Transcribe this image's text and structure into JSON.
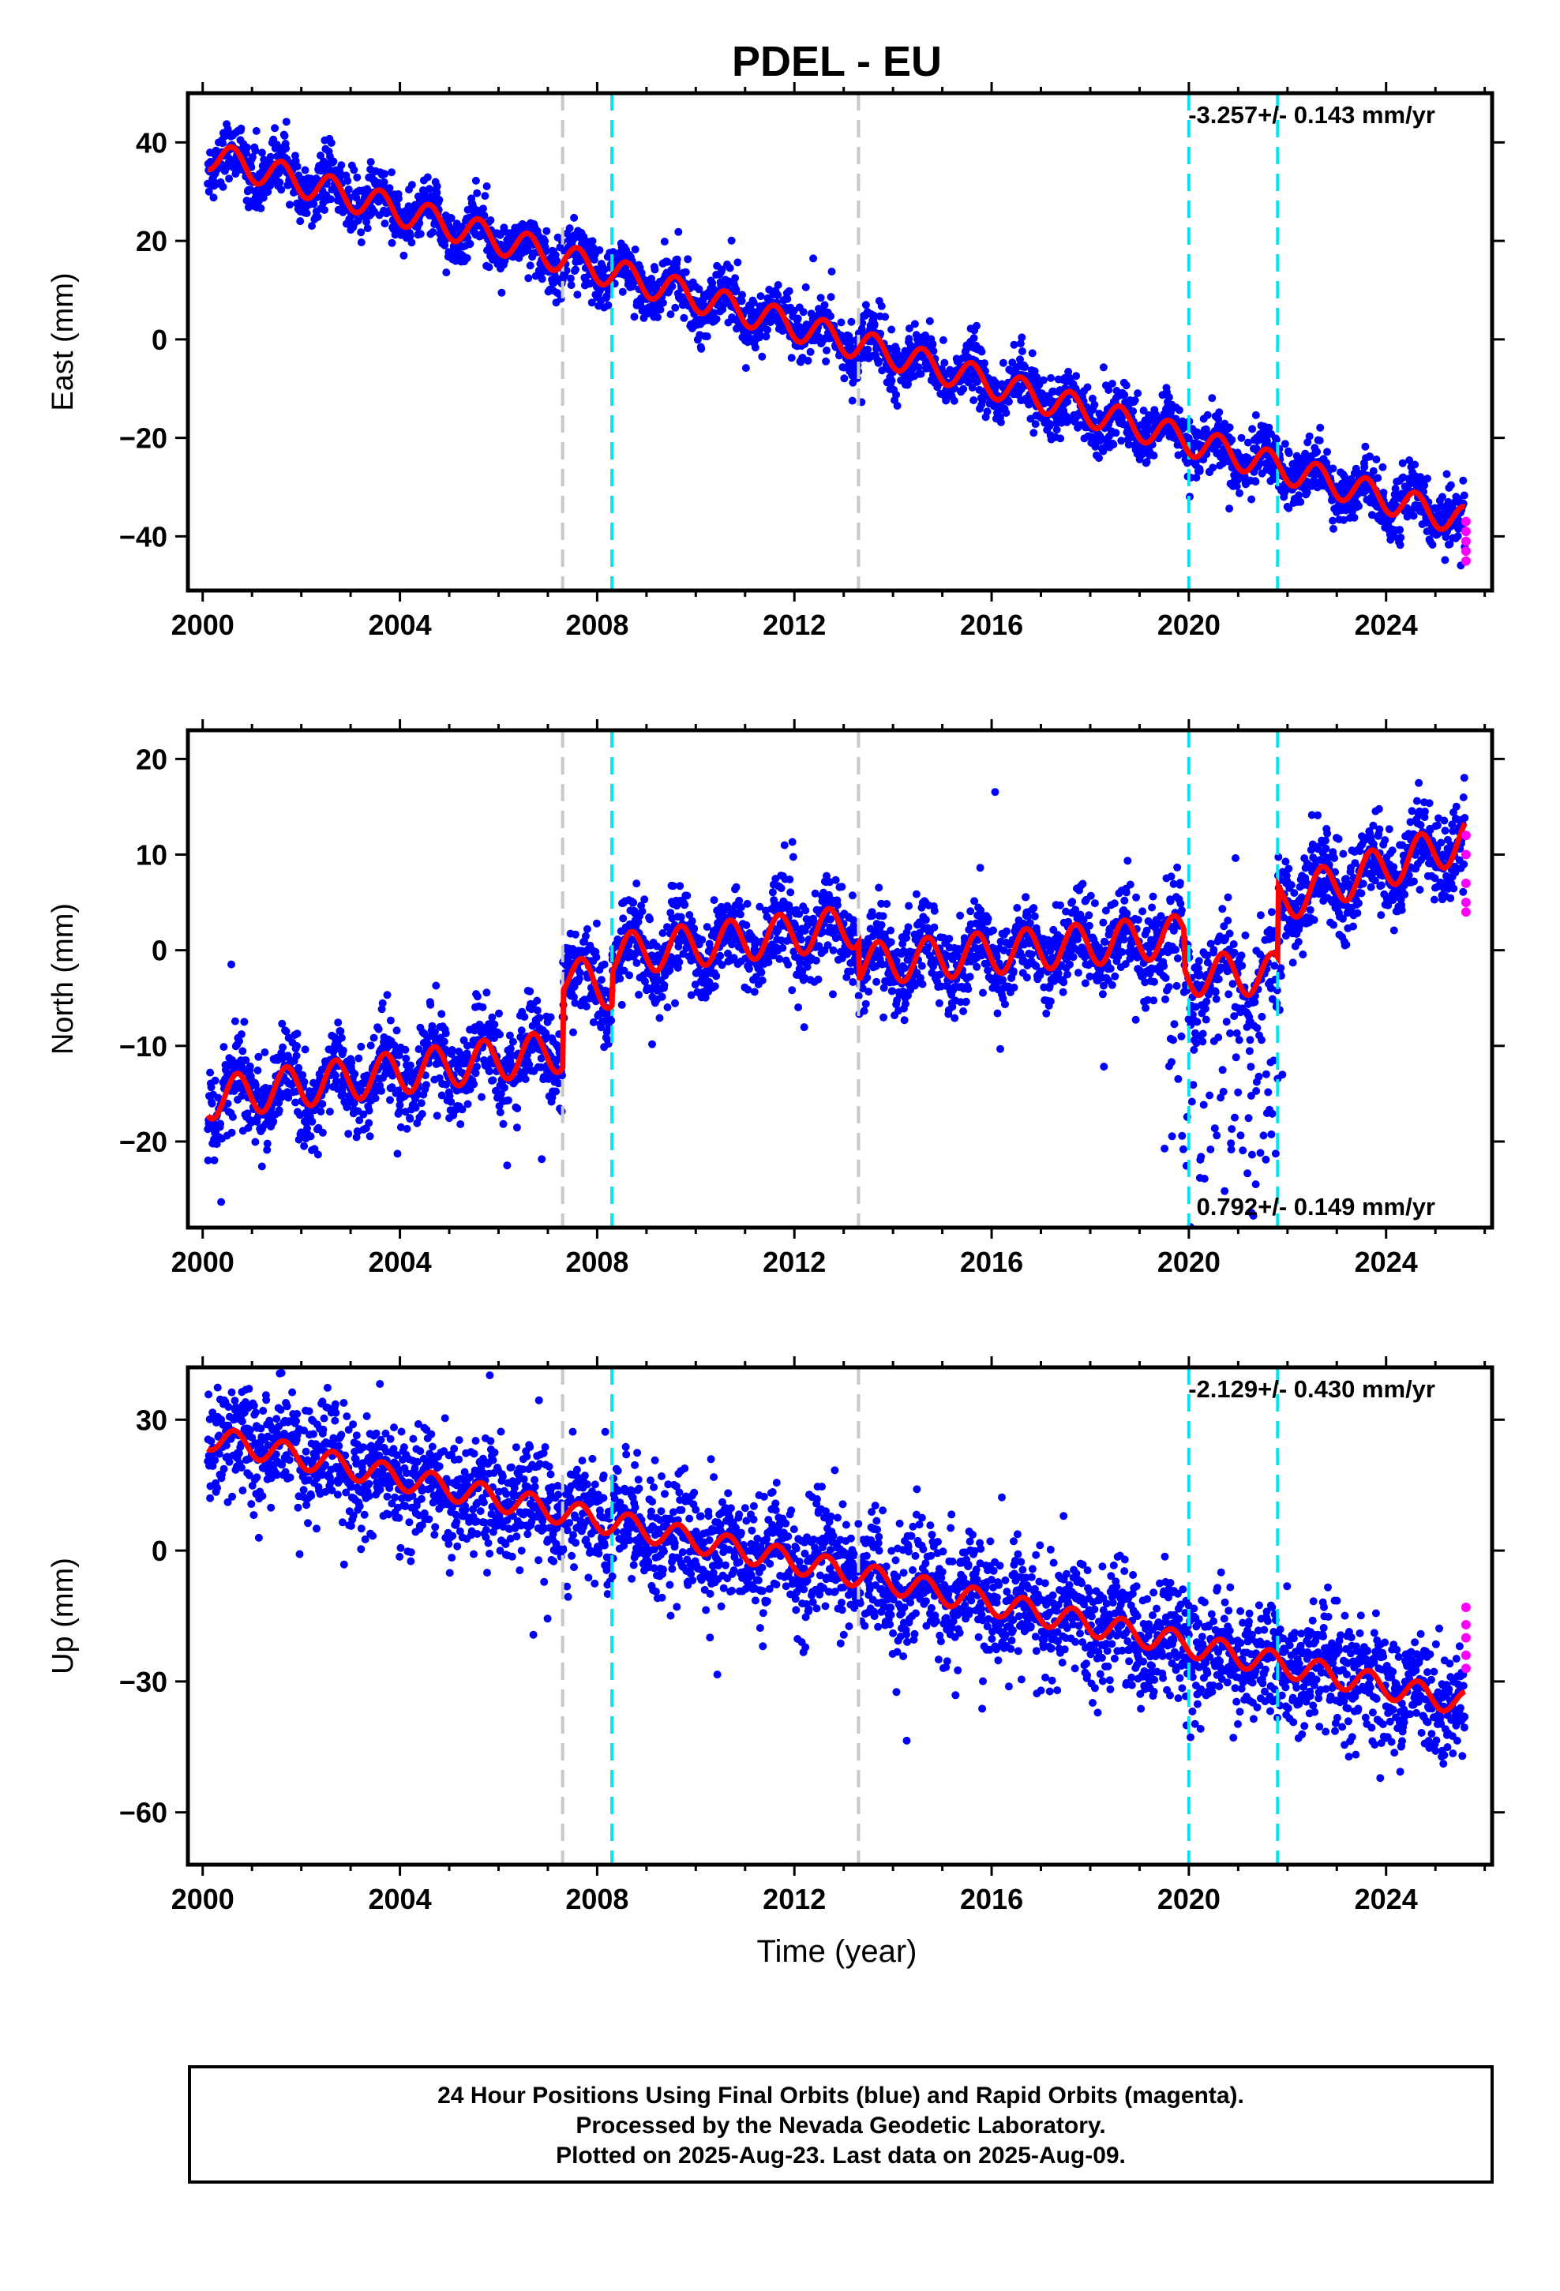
{
  "title": "PDEL - EU",
  "xlabel": "Time (year)",
  "colors": {
    "final_orbits": "#0000ff",
    "rapid_orbits": "#ff00ff",
    "model_fit": "#ff0000",
    "equipment_change": "#c8c8c8",
    "earthquake": "#00e5ee"
  },
  "footer": {
    "line1": "24 Hour Positions Using Final Orbits (blue) and Rapid Orbits (magenta).",
    "line2": "Processed by the Nevada Geodetic Laboratory.",
    "line3": "Plotted on 2025-Aug-23. Last data on 2025-Aug-09."
  },
  "chart_data": [
    {
      "type": "scatter",
      "component": "east",
      "ylabel": "East (mm)",
      "rate_label": "-3.257+/- 0.143 mm/yr",
      "rate_position": "top-right",
      "xlim": [
        1999.7,
        2026.15
      ],
      "ylim": [
        -51,
        50
      ],
      "xticks": [
        2000,
        2004,
        2008,
        2012,
        2016,
        2020,
        2024
      ],
      "yticks": [
        -40,
        -20,
        0,
        20,
        40
      ],
      "grid": false,
      "series_fit": {
        "start_year": 2000.1,
        "end_year": 2025.6,
        "start_value": 37.5,
        "end_value": -37.0,
        "annual_amplitude": 3.0,
        "phase_year": 0.35,
        "scatter_sd": 2.8,
        "offsets": [
          {
            "year": 2012.6,
            "value": -5.0
          },
          {
            "year": 2013.3,
            "value": 3.0
          },
          {
            "year": 2019.9,
            "value": -2.0
          },
          {
            "year": 2021.8,
            "value": 1.5
          }
        ]
      },
      "gray_lines": [
        2007.3,
        2013.3
      ],
      "cyan_lines": [
        2008.3,
        2020.0,
        2021.8
      ],
      "rapid_points": [
        [
          2025.62,
          -37
        ],
        [
          2025.62,
          -39
        ],
        [
          2025.62,
          -41
        ],
        [
          2025.62,
          -43
        ],
        [
          2025.62,
          -45
        ]
      ]
    },
    {
      "type": "scatter",
      "component": "north",
      "ylabel": "North (mm)",
      "rate_label": "0.792+/- 0.149 mm/yr",
      "rate_position": "bottom-right",
      "xlim": [
        1999.7,
        2026.15
      ],
      "ylim": [
        -29,
        23
      ],
      "xticks": [
        2000,
        2004,
        2008,
        2012,
        2016,
        2020,
        2024
      ],
      "yticks": [
        -20,
        -10,
        0,
        10,
        20
      ],
      "grid": false,
      "series_fit": {
        "start_year": 2000.1,
        "end_year": 2025.6,
        "start_value": -15.5,
        "end_value": 11.5,
        "annual_amplitude": 2.2,
        "phase_year": 0.45,
        "scatter_sd": 2.2,
        "segments": [
          {
            "from": 2000.1,
            "to": 2007.3,
            "start": -15.5,
            "end": -10.5
          },
          {
            "from": 2007.3,
            "to": 2008.3,
            "start": -2.5,
            "end": -4.0
          },
          {
            "from": 2008.3,
            "to": 2013.3,
            "start": -0.5,
            "end": 2.5
          },
          {
            "from": 2013.3,
            "to": 2019.9,
            "start": -1.5,
            "end": 1.5
          },
          {
            "from": 2019.9,
            "to": 2021.8,
            "start": -2.5,
            "end": -2.5
          },
          {
            "from": 2021.8,
            "to": 2025.6,
            "start": 5.0,
            "end": 11.5
          }
        ]
      },
      "gray_lines": [
        2007.3,
        2013.3
      ],
      "cyan_lines": [
        2008.3,
        2020.0,
        2021.8
      ],
      "rapid_points": [
        [
          2025.62,
          12
        ],
        [
          2025.62,
          10
        ],
        [
          2025.62,
          7
        ],
        [
          2025.62,
          5
        ],
        [
          2025.62,
          4
        ]
      ]
    },
    {
      "type": "scatter",
      "component": "up",
      "ylabel": "Up (mm)",
      "rate_label": "-2.129+/- 0.430 mm/yr",
      "rate_position": "top-right",
      "xlim": [
        1999.7,
        2026.15
      ],
      "ylim": [
        -72,
        42
      ],
      "xticks": [
        2000,
        2004,
        2008,
        2012,
        2016,
        2020,
        2024
      ],
      "yticks": [
        -60,
        -30,
        0,
        30
      ],
      "grid": false,
      "series_fit": {
        "start_year": 2000.1,
        "end_year": 2025.6,
        "start_value": 26.0,
        "end_value": -35.0,
        "annual_amplitude": 2.8,
        "phase_year": 0.4,
        "scatter_sd": 6.5,
        "offsets": [
          {
            "year": 2021.8,
            "value": -6.0
          }
        ]
      },
      "gray_lines": [
        2007.3,
        2013.3
      ],
      "cyan_lines": [
        2008.3,
        2020.0,
        2021.8
      ],
      "rapid_points": [
        [
          2025.62,
          -13
        ],
        [
          2025.62,
          -17
        ],
        [
          2025.62,
          -20
        ],
        [
          2025.62,
          -24
        ],
        [
          2025.62,
          -27
        ]
      ]
    }
  ]
}
